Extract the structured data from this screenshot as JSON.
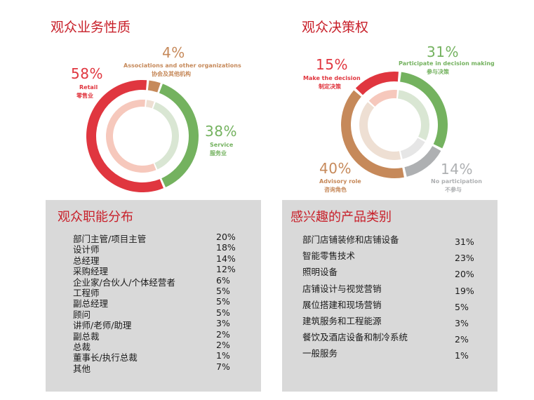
{
  "chart_data": [
    {
      "type": "pie",
      "title": "观众业务性质",
      "slices": [
        {
          "pct": "58%",
          "label_en": "Retail",
          "label_zh": "零售业",
          "value": 58,
          "color": "#e0363f",
          "inner_color": "#f6c8bc"
        },
        {
          "pct": "4%",
          "label_en": "Associations and other organizations",
          "label_zh": "协会及其他机构",
          "value": 4,
          "color": "#c6895a",
          "inner_color": "#eedfd3"
        },
        {
          "pct": "38%",
          "label_en": "Service",
          "label_zh": "服务业",
          "value": 38,
          "color": "#74b25f",
          "inner_color": "#d9e6d3"
        }
      ]
    },
    {
      "type": "pie",
      "title": "观众决策权",
      "slices": [
        {
          "pct": "15%",
          "label_en": "Make the decision",
          "label_zh": "制定决策",
          "value": 15,
          "color": "#e0363f",
          "inner_color": "#f6c8bc"
        },
        {
          "pct": "31%",
          "label_en": "Participate in decision making",
          "label_zh": "参与决策",
          "value": 31,
          "color": "#74b25f",
          "inner_color": "#d9e6d3"
        },
        {
          "pct": "14%",
          "label_en": "No participation",
          "label_zh": "不参与",
          "value": 14,
          "color": "#aeb0b2",
          "inner_color": "#e6e6e6"
        },
        {
          "pct": "40%",
          "label_en": "Advisory role",
          "label_zh": "咨询角色",
          "value": 40,
          "color": "#c6895a",
          "inner_color": "#eedfd3"
        }
      ]
    },
    {
      "type": "table",
      "title": "观众职能分布",
      "rows": [
        {
          "label": "部门主管/项目主管",
          "value": "20%"
        },
        {
          "label": "设计师",
          "value": "18%"
        },
        {
          "label": "总经理",
          "value": "14%"
        },
        {
          "label": "采购经理",
          "value": "12%"
        },
        {
          "label": "企业家/合伙人/个体经营者",
          "value": "6%"
        },
        {
          "label": "工程师",
          "value": "5%"
        },
        {
          "label": "副总经理",
          "value": "5%"
        },
        {
          "label": "顾问",
          "value": "5%"
        },
        {
          "label": "讲师/老师/助理",
          "value": "3%"
        },
        {
          "label": "副总裁",
          "value": "2%"
        },
        {
          "label": "总裁",
          "value": "2%"
        },
        {
          "label": "董事长/执行总裁",
          "value": "1%"
        },
        {
          "label": "其他",
          "value": "7%"
        }
      ]
    },
    {
      "type": "table",
      "title": "感兴趣的产品类别",
      "rows": [
        {
          "label": "部门店铺装修和店铺设备",
          "value": "31%"
        },
        {
          "label": "智能零售技术",
          "value": "23%"
        },
        {
          "label": "照明设备",
          "value": "20%"
        },
        {
          "label": "店铺设计与视觉营销",
          "value": "19%"
        },
        {
          "label": "展位搭建和现场营销",
          "value": "5%"
        },
        {
          "label": "建筑服务和工程能源",
          "value": "3%"
        },
        {
          "label": "餐饮及酒店设备和制冷系统",
          "value": "2%"
        },
        {
          "label": "一般服务",
          "value": "1%"
        }
      ]
    }
  ]
}
